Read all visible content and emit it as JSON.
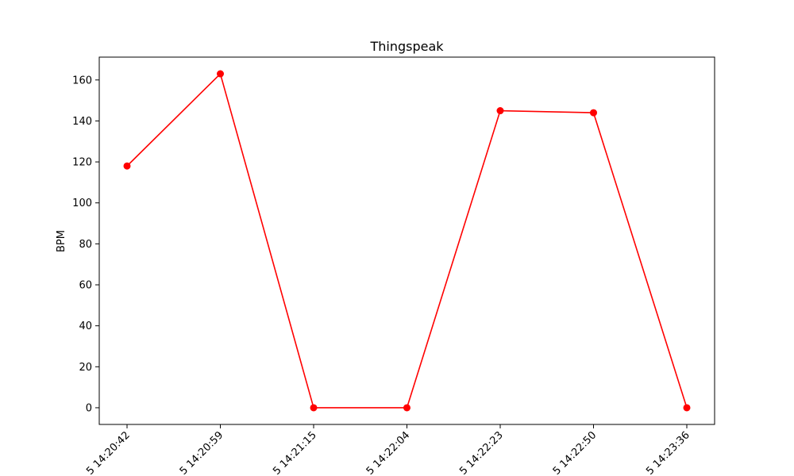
{
  "chart_data": {
    "type": "line",
    "title": "Thingspeak",
    "xlabel": "",
    "ylabel": "BPM",
    "categories": [
      "5 14:20:42",
      "5 14:20:59",
      "5 14:21:15",
      "5 14:22:04",
      "5 14:22:23",
      "5 14:22:50",
      "5 14:23:36"
    ],
    "series": [
      {
        "values": [
          118,
          163,
          0,
          0,
          145,
          144,
          0
        ]
      }
    ],
    "ylim": [
      -8.15,
      171.15
    ],
    "yticks": [
      0,
      20,
      40,
      60,
      80,
      100,
      120,
      140,
      160
    ],
    "grid": false,
    "line_color": "#ff0000",
    "marker": "circle"
  }
}
